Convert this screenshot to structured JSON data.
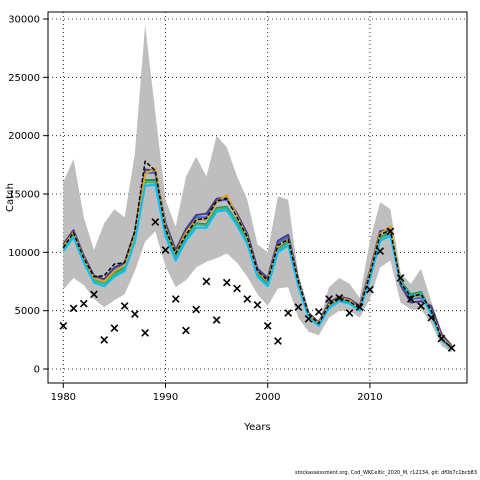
{
  "chart_data": {
    "type": "line",
    "xlabel": "Years",
    "ylabel": "Catch",
    "xlim": [
      1978.5,
      2019.5
    ],
    "ylim": [
      -1200,
      30600
    ],
    "x_ticks": [
      1980,
      1990,
      2000,
      2010
    ],
    "y_ticks": [
      0,
      5000,
      10000,
      15000,
      20000,
      25000,
      30000
    ],
    "x_tick_labels": [
      "1980",
      "1990",
      "2000",
      "2010"
    ],
    "y_tick_labels": [
      "0",
      "5000",
      "10000",
      "15000",
      "20000",
      "25000",
      "30000"
    ],
    "grid": true,
    "grid_style": "dotted",
    "x": [
      1980,
      1981,
      1982,
      1983,
      1984,
      1985,
      1986,
      1987,
      1988,
      1989,
      1990,
      1991,
      1992,
      1993,
      1994,
      1995,
      1996,
      1997,
      1998,
      1999,
      2000,
      2001,
      2002,
      2003,
      2004,
      2005,
      2006,
      2007,
      2008,
      2009,
      2010,
      2011,
      2012,
      2013,
      2014,
      2015,
      2016,
      2017,
      2018
    ],
    "band_color": "#bebebe",
    "band_upper": [
      16000,
      18000,
      13000,
      10200,
      12500,
      13700,
      13000,
      18500,
      29500,
      22000,
      14500,
      12200,
      16500,
      18200,
      16500,
      20000,
      19000,
      16500,
      14500,
      10700,
      10000,
      14800,
      14500,
      8000,
      4500,
      3900,
      7000,
      7800,
      7300,
      6100,
      11000,
      14300,
      13700,
      8200,
      7300,
      8600,
      5800,
      3200,
      2000
    ],
    "band_lower": [
      6800,
      7800,
      7200,
      6000,
      5300,
      5900,
      6400,
      8400,
      10900,
      11800,
      8800,
      7000,
      7600,
      8700,
      9200,
      9500,
      9900,
      9100,
      7900,
      6400,
      5400,
      6900,
      7000,
      4400,
      3200,
      2900,
      4400,
      5000,
      5000,
      4400,
      6000,
      8700,
      9300,
      5700,
      5100,
      5100,
      3900,
      2000,
      1400
    ],
    "series": [
      {
        "color": "#2e8b57",
        "values": [
          10400,
          11600,
          9400,
          7700,
          7400,
          8200,
          8700,
          11200,
          16200,
          16200,
          11800,
          9600,
          11300,
          12500,
          12400,
          13800,
          13900,
          12600,
          11000,
          8100,
          7300,
          10300,
          10900,
          7300,
          4600,
          3800,
          5400,
          6000,
          5800,
          5200,
          8000,
          11300,
          11700,
          7600,
          6400,
          6600,
          4900,
          2600,
          1800
        ]
      },
      {
        "color": "#3cb371",
        "values": [
          10300,
          11500,
          9300,
          7600,
          7300,
          8100,
          8600,
          11100,
          16000,
          16000,
          11600,
          9500,
          11200,
          12400,
          12300,
          13700,
          13800,
          12500,
          10900,
          8000,
          7200,
          10200,
          10800,
          7200,
          4500,
          3700,
          5300,
          5900,
          5700,
          5100,
          7900,
          11200,
          11600,
          7500,
          6300,
          6500,
          4800,
          2500,
          1800
        ]
      },
      {
        "color": "#4169e1",
        "values": [
          10600,
          11800,
          9600,
          7900,
          7600,
          8500,
          9000,
          11600,
          16800,
          16800,
          12200,
          10000,
          11800,
          13000,
          13000,
          14400,
          14500,
          13200,
          11500,
          8500,
          7700,
          10800,
          11300,
          7600,
          4700,
          3900,
          5600,
          6200,
          5900,
          5300,
          8300,
          11700,
          11900,
          7300,
          6000,
          6100,
          5200,
          2800,
          1900
        ]
      },
      {
        "color": "#483d8b",
        "values": [
          10700,
          11900,
          9700,
          8000,
          7700,
          8700,
          9100,
          11800,
          17100,
          17000,
          12500,
          10200,
          12000,
          13200,
          13300,
          14600,
          14700,
          13300,
          11600,
          8600,
          7800,
          11000,
          11500,
          7700,
          4800,
          4000,
          5700,
          6200,
          6000,
          5400,
          8400,
          11800,
          12000,
          7200,
          5700,
          5800,
          5400,
          3000,
          2000
        ]
      },
      {
        "color": "#daa520",
        "values": [
          10500,
          11700,
          9500,
          7800,
          7500,
          8400,
          8900,
          11500,
          16700,
          17200,
          12100,
          9900,
          11700,
          12800,
          12800,
          14300,
          14900,
          13100,
          11300,
          8300,
          7600,
          10600,
          11100,
          7500,
          4700,
          3900,
          5500,
          6100,
          5900,
          5200,
          8200,
          11600,
          12200,
          7500,
          6100,
          6300,
          5000,
          2700,
          1900
        ]
      },
      {
        "color": "#00bfff",
        "values": [
          10100,
          11300,
          9100,
          7400,
          7100,
          7900,
          8400,
          10900,
          15700,
          15800,
          11400,
          9300,
          11000,
          12100,
          12100,
          13500,
          13600,
          12300,
          10700,
          7900,
          7100,
          10000,
          10600,
          7100,
          4400,
          3700,
          5200,
          5800,
          5600,
          5000,
          7700,
          11000,
          11400,
          7400,
          6200,
          6400,
          4700,
          2500,
          1700
        ]
      },
      {
        "color": "#000000",
        "dashed": true,
        "values": [
          10400,
          11700,
          9500,
          7900,
          8000,
          9000,
          9100,
          11800,
          17800,
          17000,
          12000,
          9900,
          11500,
          12800,
          12900,
          14400,
          14600,
          13000,
          11300,
          8400,
          7600,
          10600,
          11100,
          7500,
          4700,
          3900,
          5500,
          6100,
          5800,
          5200,
          8100,
          11500,
          11900,
          7400,
          6200,
          6400,
          5000,
          2600,
          1800
        ]
      }
    ],
    "observed": {
      "marker": "x",
      "x": [
        1980,
        1981,
        1982,
        1983,
        1984,
        1985,
        1986,
        1987,
        1988,
        1989,
        1990,
        1991,
        1992,
        1993,
        1994,
        1995,
        1996,
        1997,
        1998,
        1999,
        2000,
        2001,
        2002,
        2003,
        2004,
        2005,
        2006,
        2007,
        2008,
        2009,
        2010,
        2011,
        2012,
        2013,
        2014,
        2015,
        2016,
        2017,
        2018
      ],
      "values": [
        3700,
        5200,
        5600,
        6400,
        2500,
        3500,
        5400,
        4700,
        3100,
        12600,
        10200,
        6000,
        3300,
        5100,
        7500,
        4200,
        7400,
        6900,
        6000,
        5500,
        3700,
        2400,
        4800,
        5300,
        4300,
        4900,
        6000,
        6100,
        4800,
        5300,
        6800,
        10100,
        11800,
        7800,
        6000,
        5400,
        4400,
        2600,
        1800
      ]
    },
    "footer_text": "stockassessment.org, Cod_WKCeltic_2020_M, r12134, git: df0b7c1bcb83"
  }
}
